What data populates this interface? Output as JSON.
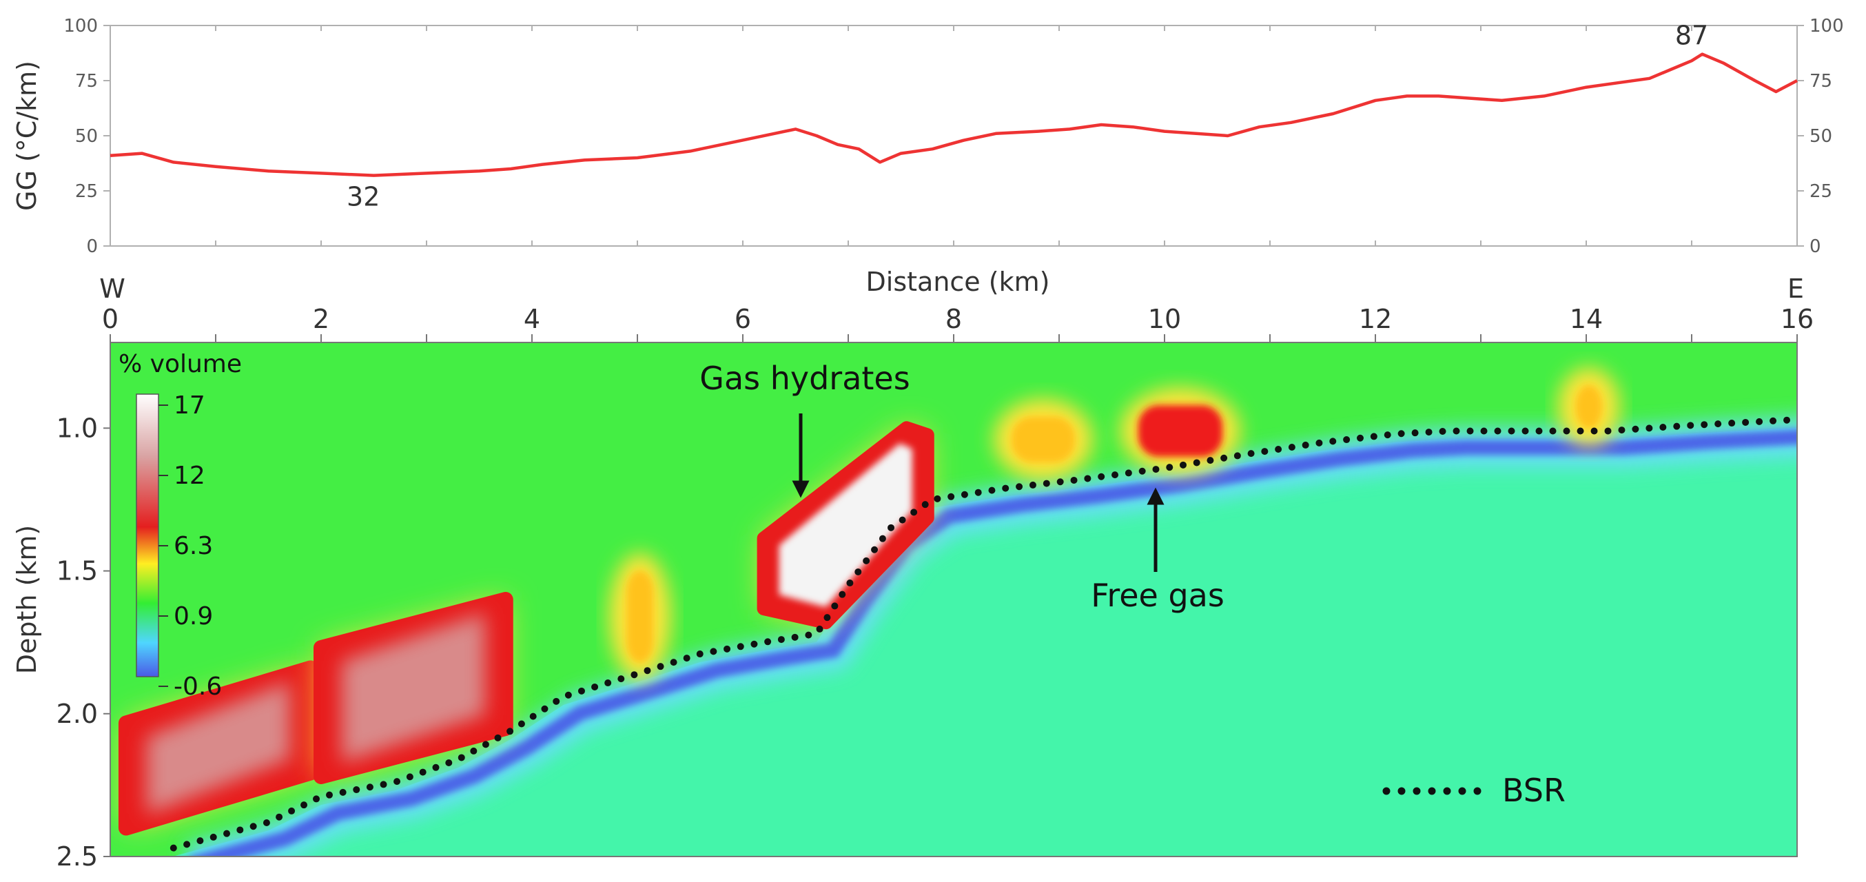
{
  "chart_data": [
    {
      "type": "line",
      "ylabel": "GG (°C/km)",
      "xlabel": "Distance (km)",
      "xlim": [
        0,
        16
      ],
      "ylim": [
        0,
        100
      ],
      "yticks": [
        "0",
        "25",
        "50",
        "75",
        "100"
      ],
      "right_yticks": [
        "0",
        "25",
        "50",
        "75",
        "100"
      ],
      "color": "#ee3333",
      "annotations": [
        {
          "text": "32",
          "x": 2.4,
          "y": 32
        },
        {
          "text": "87",
          "x": 15.0,
          "y": 87
        }
      ],
      "series": [
        {
          "x": [
            0,
            0.3,
            0.6,
            1.0,
            1.5,
            2.0,
            2.5,
            3.0,
            3.5,
            3.8,
            4.1,
            4.5,
            5.0,
            5.5,
            6.0,
            6.3,
            6.5,
            6.7,
            6.9,
            7.1,
            7.3,
            7.5,
            7.8,
            8.1,
            8.4,
            8.8,
            9.1,
            9.4,
            9.7,
            10.0,
            10.3,
            10.6,
            10.9,
            11.2,
            11.6,
            12.0,
            12.3,
            12.6,
            12.9,
            13.2,
            13.6,
            14.0,
            14.3,
            14.6,
            14.8,
            15.0,
            15.1,
            15.3,
            15.6,
            15.8,
            16.0
          ],
          "y": [
            41,
            42,
            38,
            36,
            34,
            33,
            32,
            33,
            34,
            35,
            37,
            39,
            40,
            43,
            48,
            51,
            53,
            50,
            46,
            44,
            38,
            42,
            44,
            48,
            51,
            52,
            53,
            55,
            54,
            52,
            51,
            50,
            54,
            56,
            60,
            66,
            68,
            68,
            67,
            66,
            68,
            72,
            74,
            76,
            80,
            84,
            87,
            83,
            75,
            70,
            75
          ]
        }
      ]
    },
    {
      "type": "heatmap",
      "title": "",
      "xlabel": "Distance (km)",
      "ylabel": "Depth (km)",
      "xlim": [
        0,
        16
      ],
      "ylim": [
        2.5,
        0.7
      ],
      "xticks": [
        "0",
        "2",
        "4",
        "6",
        "8",
        "10",
        "12",
        "14",
        "16"
      ],
      "yticks": [
        "1.0",
        "1.5",
        "2.0",
        "2.5"
      ],
      "direction_labels": {
        "west": "W",
        "east": "E"
      },
      "colorbar": {
        "title": "% volume",
        "ticks": [
          "17",
          "12",
          "6.3",
          "0.9",
          "-0.6"
        ],
        "values": [
          17,
          12,
          6.3,
          0.9,
          -0.6
        ],
        "colors": [
          "#ffffff",
          "#d9a3a3",
          "#e41f1f",
          "#ffee22",
          "#33ee33",
          "#4fd6ff",
          "#4a5ae6"
        ]
      },
      "background_color": "#44ee44",
      "below_bsr_color": "#44f5aa",
      "annotations": [
        {
          "text": "Gas hydrates",
          "x": 6.6,
          "y": 1.24,
          "arrow": "down"
        },
        {
          "text": "Free gas",
          "x": 9.9,
          "y": 1.24,
          "arrow": "up"
        }
      ],
      "legend": [
        {
          "label": "BSR",
          "style": "dotted",
          "color": "#111111"
        }
      ],
      "bsr": {
        "x": [
          0.6,
          1.5,
          2.0,
          2.7,
          3.3,
          3.8,
          4.3,
          5.0,
          5.6,
          6.2,
          6.7,
          7.0,
          7.4,
          7.8,
          8.5,
          9.2,
          10.0,
          10.8,
          11.5,
          12.2,
          12.7,
          13.4,
          14.2,
          15.0,
          16.0
        ],
        "y": [
          2.47,
          2.38,
          2.29,
          2.24,
          2.16,
          2.06,
          1.94,
          1.86,
          1.79,
          1.75,
          1.72,
          1.55,
          1.35,
          1.25,
          1.21,
          1.18,
          1.14,
          1.09,
          1.05,
          1.02,
          1.01,
          1.01,
          1.01,
          0.99,
          0.97
        ]
      },
      "high_volume_bodies": [
        {
          "label": "",
          "x": [
            0.15,
            1.9
          ],
          "depth": [
            1.84,
            2.4
          ],
          "peak": 12
        },
        {
          "label": "",
          "x": [
            2.0,
            3.75
          ],
          "depth": [
            1.6,
            2.22
          ],
          "peak": 12
        },
        {
          "label": "",
          "x": [
            6.2,
            7.75
          ],
          "depth": [
            1.0,
            1.68
          ],
          "peak": 17
        },
        {
          "label": "",
          "x": [
            9.75,
            10.55
          ],
          "depth": [
            0.92,
            1.1
          ],
          "peak": 6.3
        },
        {
          "label": "",
          "x": [
            8.55,
            9.15
          ],
          "depth": [
            0.96,
            1.12
          ],
          "peak": 3
        },
        {
          "label": "",
          "x": [
            4.9,
            5.15
          ],
          "depth": [
            1.5,
            1.82
          ],
          "peak": 3
        },
        {
          "label": "",
          "x": [
            13.9,
            14.15
          ],
          "depth": [
            0.85,
            1.0
          ],
          "peak": 4
        }
      ]
    }
  ]
}
